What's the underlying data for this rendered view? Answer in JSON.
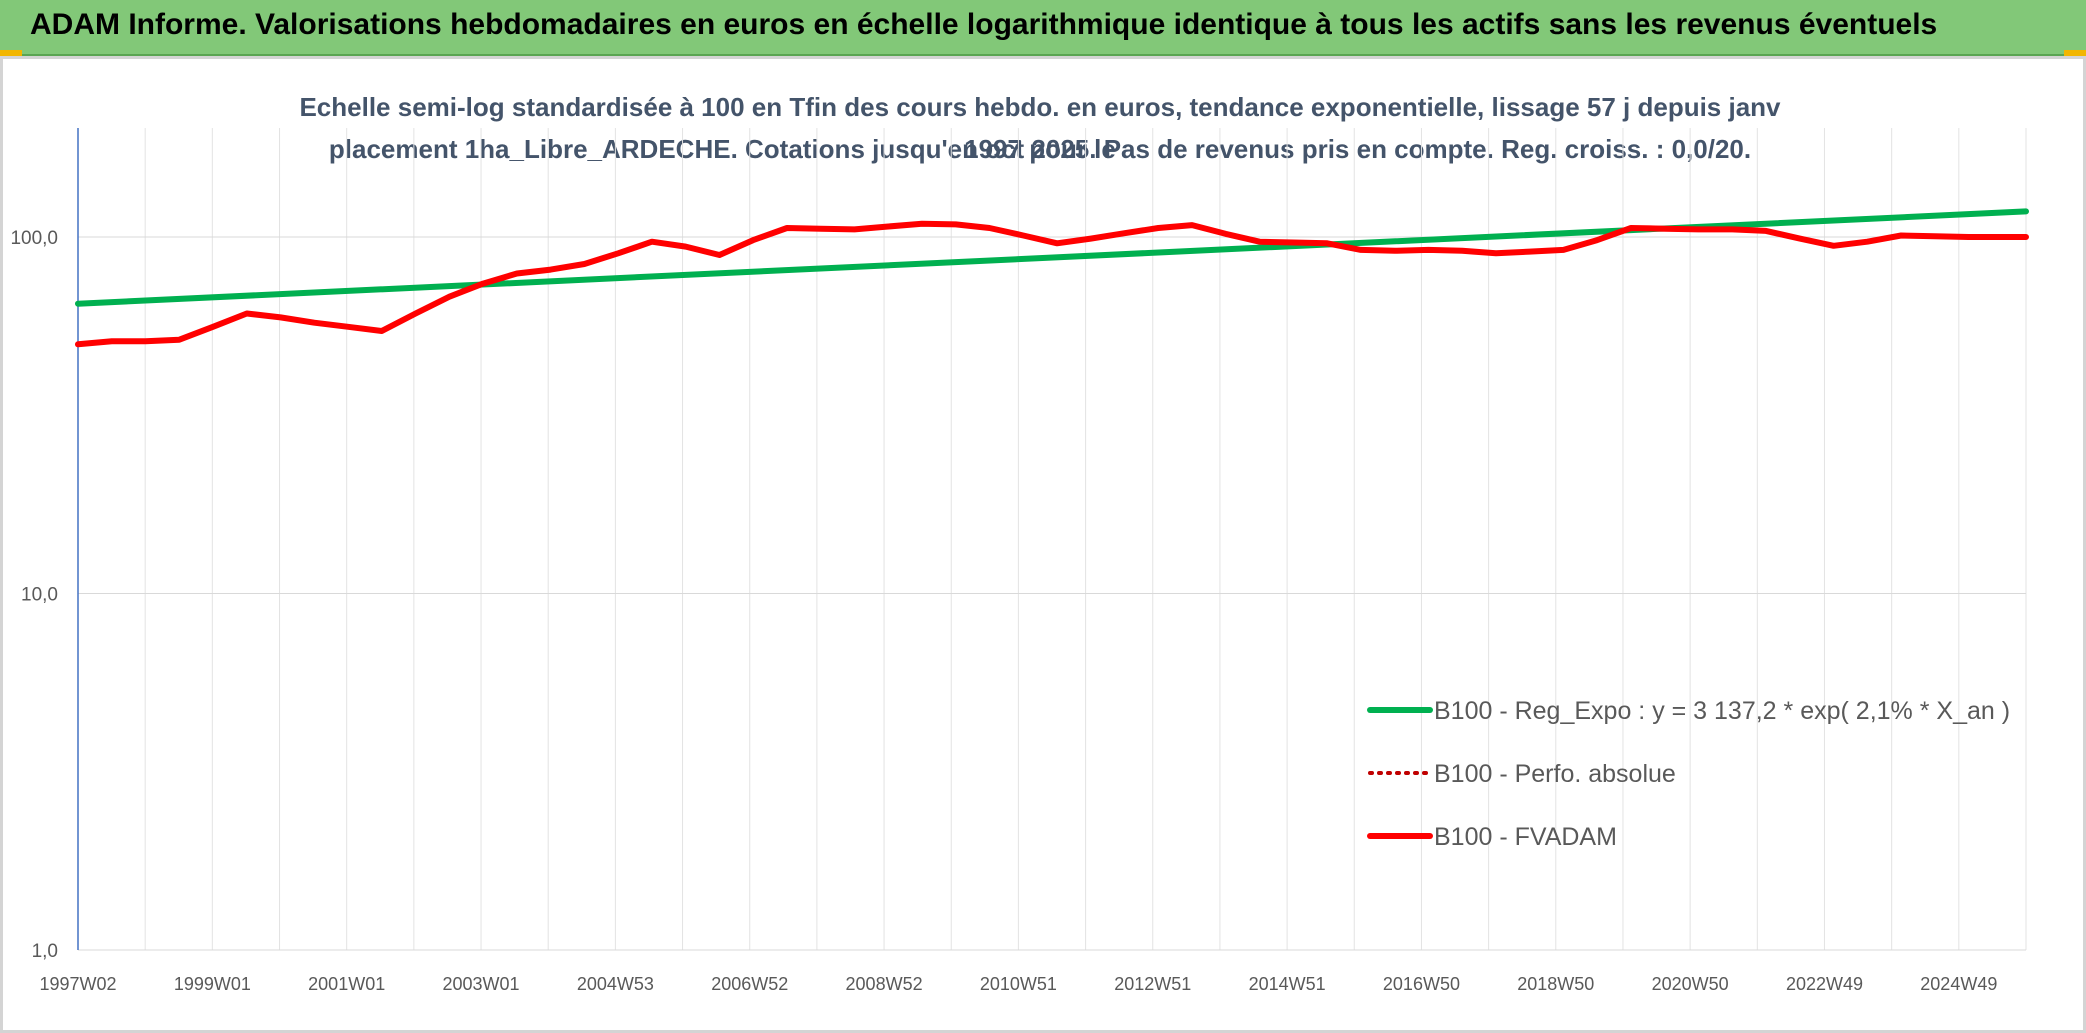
{
  "header": {
    "title": "ADAM Informe. Valorisations hebdomadaires en euros en échelle logarithmique identique à tous les actifs sans les revenus éventuels"
  },
  "colors": {
    "header_bg": "#82c878",
    "corner_accent": "#f2b600",
    "regression_line": "#00b050",
    "fvadam_line": "#ff0000",
    "perfo_line": "#c00000"
  },
  "chart_data": {
    "type": "line",
    "title_line1": "Echelle semi-log standardisée à 100 en Tfin des cours hebdo. en euros, tendance exponentielle, lissage 57 j depuis janv 1997 pour le",
    "title_line2": "placement 1ha_Libre_ARDECHE. Cotations jusqu'en oct 2025. Pas de revenus pris en compte. Reg. croiss. : 0,0/20.",
    "xlabel": "",
    "ylabel": "",
    "y_scale": "log",
    "ylim": [
      1,
      200
    ],
    "y_ticks": [
      {
        "value": 1,
        "label": "1,0"
      },
      {
        "value": 10,
        "label": "10,0"
      },
      {
        "value": 100,
        "label": "100,0"
      }
    ],
    "x_range": [
      1997.0,
      2025.85
    ],
    "x_tick_labels": [
      "1997W02",
      "1999W01",
      "2001W01",
      "2003W01",
      "2004W53",
      "2006W52",
      "2008W52",
      "2010W51",
      "2012W51",
      "2014W51",
      "2016W50",
      "2018W50",
      "2020W50",
      "2022W49",
      "2024W49"
    ],
    "grid": true,
    "legend_position": "bottom-right",
    "series": [
      {
        "name": "B100 - Reg_Expo : y = 3 137,2 * exp( 2,1% *  X_an )",
        "color": "#00b050",
        "style": "solid",
        "x": [
          1997.0,
          2025.85
        ],
        "y": [
          65.0,
          118.0
        ]
      },
      {
        "name": "B100 - Perfo. absolue",
        "color": "#c00000",
        "style": "dotted",
        "x": [],
        "y": []
      },
      {
        "name": "B100 - FVADAM",
        "color": "#ff0000",
        "style": "solid",
        "x": [
          1997.0,
          1997.5,
          1998.0,
          1998.5,
          1999.0,
          1999.5,
          2000.0,
          2000.5,
          2001.0,
          2001.5,
          2002.0,
          2002.5,
          2003.0,
          2003.5,
          2004.0,
          2004.5,
          2005.0,
          2005.5,
          2006.0,
          2006.5,
          2007.0,
          2007.5,
          2008.0,
          2008.5,
          2009.0,
          2009.5,
          2010.0,
          2010.5,
          2011.0,
          2011.5,
          2012.0,
          2012.5,
          2013.0,
          2013.5,
          2014.0,
          2014.5,
          2015.0,
          2015.5,
          2016.0,
          2016.5,
          2017.0,
          2017.5,
          2018.0,
          2018.5,
          2019.0,
          2019.5,
          2020.0,
          2020.5,
          2021.0,
          2021.5,
          2022.0,
          2022.5,
          2023.0,
          2023.5,
          2024.0,
          2024.5,
          2025.0,
          2025.85
        ],
        "y": [
          50.0,
          51.0,
          51.0,
          51.5,
          56.0,
          61.0,
          59.5,
          57.5,
          56.0,
          54.5,
          61.0,
          68.0,
          74.0,
          79.0,
          81.0,
          84.0,
          90.0,
          97.0,
          94.0,
          89.0,
          98.0,
          106.0,
          105.5,
          105.0,
          107.0,
          109.0,
          108.5,
          106.0,
          101.0,
          96.0,
          99.0,
          102.5,
          106.0,
          108.0,
          102.0,
          97.0,
          96.5,
          96.0,
          92.0,
          91.5,
          92.0,
          91.5,
          90.0,
          91.0,
          92.0,
          98.0,
          106.0,
          105.5,
          105.0,
          105.0,
          104.0,
          99.0,
          94.5,
          97.0,
          101.0,
          100.5,
          100.0,
          100.0
        ]
      }
    ]
  }
}
